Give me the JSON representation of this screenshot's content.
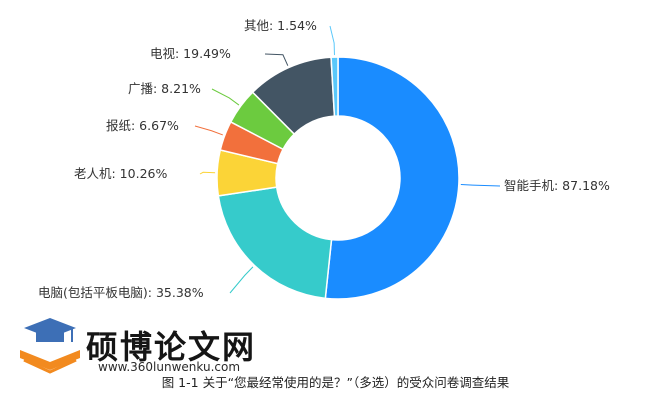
{
  "chart_data": {
    "type": "pie",
    "donut": true,
    "slices": [
      {
        "label": "智能手机",
        "percent_text": "87.18%",
        "value": 87.18,
        "color": "#1a8cff"
      },
      {
        "label": "电脑(包括平板电脑)",
        "percent_text": "35.38%",
        "value": 35.38,
        "color": "#36cbcb"
      },
      {
        "label": "老人机",
        "percent_text": "10.26%",
        "value": 10.26,
        "color": "#fbd437"
      },
      {
        "label": "报纸",
        "percent_text": "6.67%",
        "value": 6.67,
        "color": "#f2703c"
      },
      {
        "label": "广播",
        "percent_text": "8.21%",
        "value": 8.21,
        "color": "#6ccb3f"
      },
      {
        "label": "电视",
        "percent_text": "19.49%",
        "value": 19.49,
        "color": "#435564"
      },
      {
        "label": "其他",
        "percent_text": "1.54%",
        "value": 1.54,
        "color": "#5ac8fa"
      }
    ],
    "caption": "图 1-1 关于“您最经常使用的是？”（多选）的受众问卷调查结果"
  },
  "watermark": {
    "name": "硕博论文网",
    "url": "www.360lunwenku.com"
  }
}
